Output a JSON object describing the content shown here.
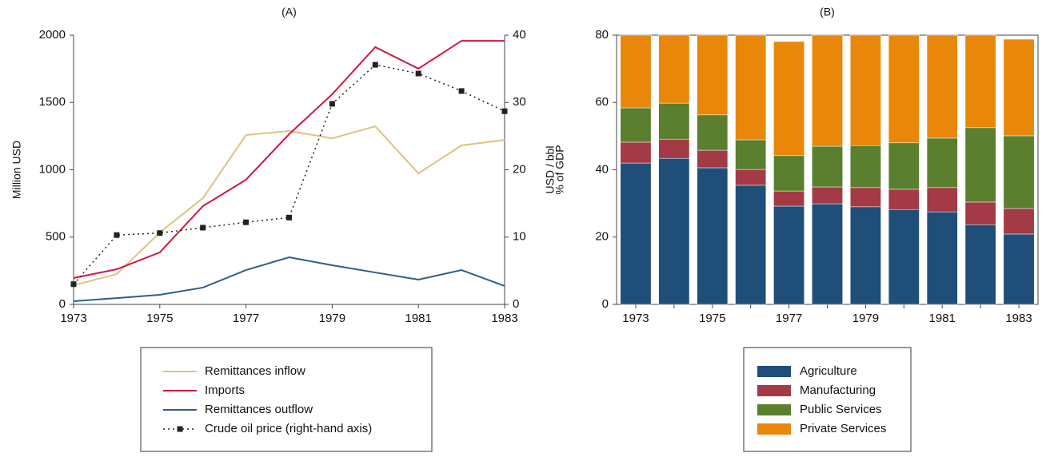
{
  "chart_data": [
    {
      "type": "line",
      "title": "(A)",
      "ylabel": "Million USD",
      "y2label": "USD / bbl",
      "x": [
        1973,
        1974,
        1975,
        1976,
        1977,
        1978,
        1979,
        1980,
        1981,
        1982,
        1983
      ],
      "xlim": [
        1973,
        1983
      ],
      "xticks": [
        1973,
        1975,
        1977,
        1979,
        1981,
        1983
      ],
      "ylim": [
        0,
        2000
      ],
      "yticks": [
        0,
        500,
        1000,
        1500,
        2000
      ],
      "y2lim": [
        0,
        40
      ],
      "y2ticks": [
        0,
        10,
        20,
        30,
        40
      ],
      "series": [
        {
          "name": "Remittances inflow",
          "color": "#dcc47c",
          "values": [
            142,
            225,
            534,
            789,
            1258,
            1288,
            1234,
            1323,
            973,
            1181,
            1222
          ]
        },
        {
          "name": "Imports",
          "color": "#d0163f",
          "values": [
            196,
            261,
            386,
            730,
            926,
            1264,
            1561,
            1911,
            1751,
            1958,
            1958
          ]
        },
        {
          "name": "Remittances outflow",
          "color": "#2e5f8a",
          "values": [
            24,
            47,
            71,
            125,
            255,
            350,
            291,
            237,
            184,
            255,
            137
          ]
        },
        {
          "name": "Crude oil price (right-hand axis)",
          "color": "#222222",
          "axis": "y2",
          "dashed": true,
          "marker": "square",
          "values": [
            3.0,
            10.3,
            10.6,
            11.4,
            12.2,
            12.9,
            29.8,
            35.6,
            34.3,
            31.7,
            28.7
          ]
        }
      ]
    },
    {
      "type": "stacked-bar",
      "title": "(B)",
      "ylabel": "% of GDP",
      "categories": [
        "1973",
        null,
        "1975",
        null,
        "1977",
        null,
        "1979",
        null,
        "1981",
        null,
        "1983"
      ],
      "ylim": [
        0,
        80
      ],
      "yticks": [
        0,
        20,
        40,
        60,
        80
      ],
      "series": [
        {
          "name": "Agriculture",
          "color": "#1f4e79",
          "values": [
            42.0,
            43.4,
            40.6,
            35.4,
            29.2,
            29.9,
            29.0,
            28.2,
            27.5,
            23.7,
            20.9
          ]
        },
        {
          "name": "Manufacturing",
          "color": "#a33a45",
          "values": [
            6.2,
            5.7,
            5.2,
            4.7,
            4.5,
            5.0,
            5.7,
            6.0,
            7.2,
            6.7,
            7.6
          ]
        },
        {
          "name": "Public Services",
          "color": "#5a7f2e",
          "values": [
            10.2,
            10.7,
            10.5,
            8.8,
            10.5,
            12.1,
            12.5,
            13.8,
            14.7,
            22.1,
            21.6
          ]
        },
        {
          "name": "Private Services",
          "color": "#e8870a",
          "values": [
            21.6,
            20.2,
            23.7,
            31.1,
            33.9,
            33.0,
            32.8,
            32.0,
            30.6,
            27.5,
            28.7
          ]
        }
      ]
    }
  ]
}
